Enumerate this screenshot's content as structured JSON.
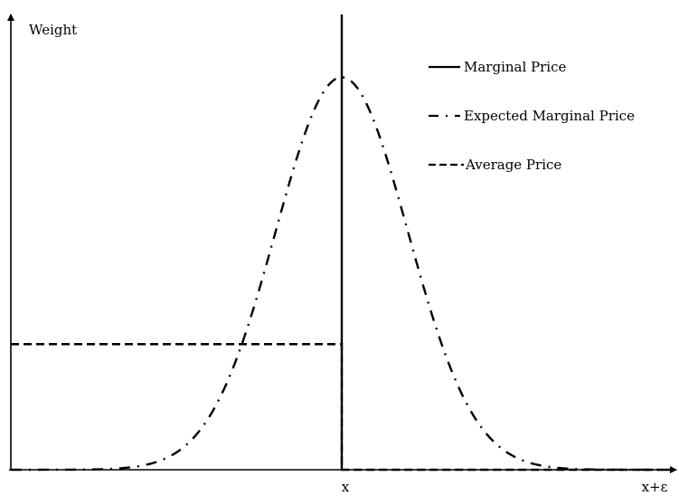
{
  "chart_data": {
    "type": "line",
    "ylabel": "Weight",
    "x_ticks": [
      {
        "label": "x",
        "value": 0
      },
      {
        "label": "x+ε",
        "value": 1
      }
    ],
    "xlim": [
      -1,
      1
    ],
    "ylim": [
      0,
      1.16
    ],
    "grid": false,
    "legend_position": "top-right",
    "series": [
      {
        "name": "Marginal Price",
        "style": "solid",
        "color": "#000000",
        "shape": "vertical line at x",
        "x": [
          0,
          0
        ],
        "y": [
          0,
          1.16
        ]
      },
      {
        "name": "Expected Marginal Price",
        "style": "dash-dot",
        "color": "#000000",
        "shape": "bell curve centred at x",
        "center": 0,
        "peak": 1.0,
        "sigma": 0.2
      },
      {
        "name": "Average Price",
        "style": "dashed",
        "color": "#000000",
        "shape": "step down at x",
        "x": [
          -1,
          0,
          0,
          1
        ],
        "y": [
          0.32,
          0.32,
          0,
          0
        ]
      }
    ]
  }
}
